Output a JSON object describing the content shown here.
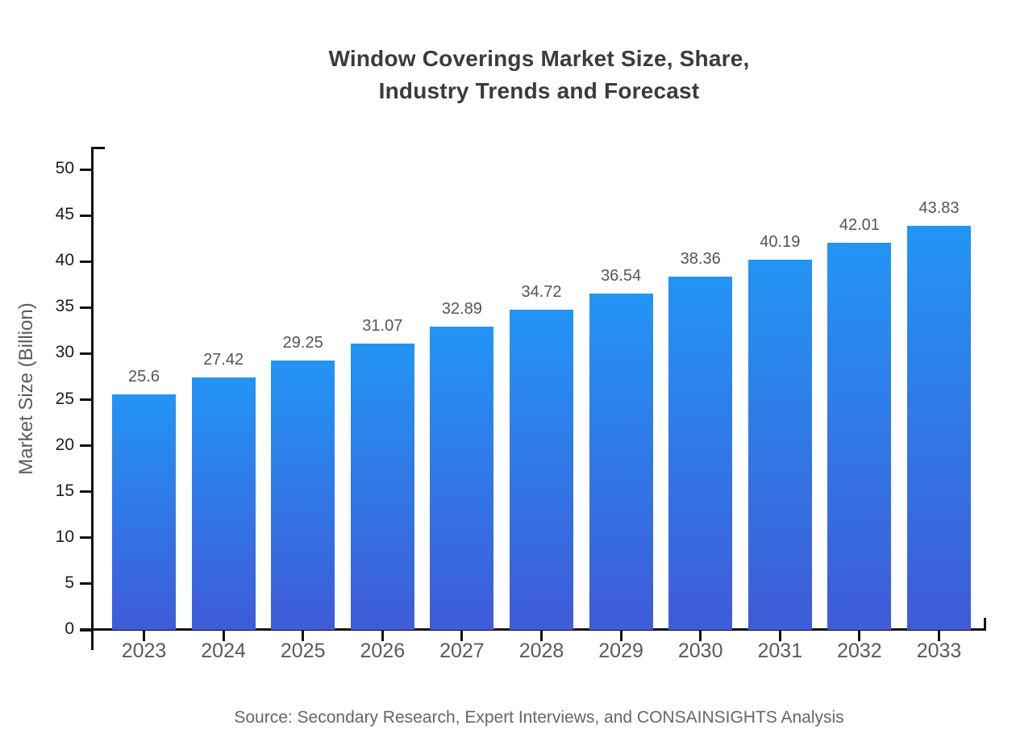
{
  "title": {
    "line1": "Window Coverings Market Size, Share,",
    "line2": "Industry Trends and Forecast"
  },
  "source_note": "Source: Secondary Research, Expert Interviews, and CONSAINSIGHTS Analysis",
  "chart_data": {
    "type": "bar",
    "title": "Window Coverings Market Size, Share, Industry Trends and Forecast",
    "categories": [
      "2023",
      "2024",
      "2025",
      "2026",
      "2027",
      "2028",
      "2029",
      "2030",
      "2031",
      "2032",
      "2033"
    ],
    "values": [
      25.6,
      27.42,
      29.25,
      31.07,
      32.89,
      34.72,
      36.54,
      38.36,
      40.19,
      42.01,
      43.83
    ],
    "value_labels": [
      "25.6",
      "27.42",
      "29.25",
      "31.07",
      "32.89",
      "34.72",
      "36.54",
      "38.36",
      "40.19",
      "42.01",
      "43.83"
    ],
    "xlabel": "",
    "ylabel": "Market Size (Billion)",
    "ylim": [
      0,
      52.5
    ],
    "yticks": [
      0,
      5,
      10,
      15,
      20,
      25,
      30,
      35,
      40,
      45,
      50
    ],
    "grid": false,
    "legend_position": "none",
    "bar_color_top": "#2395f4",
    "bar_color_bottom": "#3f5bd7",
    "axis_color": "#111111"
  }
}
